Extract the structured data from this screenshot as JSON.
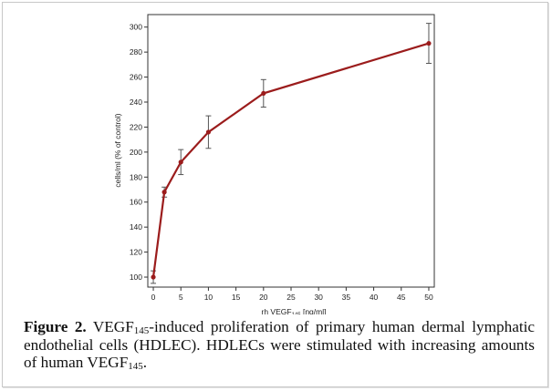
{
  "chart_data": {
    "type": "line",
    "title": "",
    "ylabel": "cells/ml (% of control)",
    "xlabel_main": "rh VEGF",
    "xlabel_sub": "145",
    "xlabel_tail": " [ng/ml]",
    "xlim": [
      -1,
      51
    ],
    "ylim": [
      92,
      310
    ],
    "x_ticks": [
      0,
      5,
      10,
      15,
      20,
      25,
      30,
      35,
      40,
      45,
      50
    ],
    "y_ticks": [
      100,
      120,
      140,
      160,
      180,
      200,
      220,
      240,
      260,
      280,
      300
    ],
    "grid": false,
    "series": [
      {
        "x": [
          0,
          2,
          5,
          10,
          20,
          50
        ],
        "y": [
          100,
          168,
          192,
          216,
          247,
          287
        ],
        "err": [
          5,
          4,
          10,
          13,
          11,
          16
        ],
        "color": "#9b1c1c"
      }
    ]
  },
  "caption": {
    "label": "Figure 2.",
    "t1": " VEGF",
    "sub1": "145",
    "t2": "-induced proliferation of primary human dermal lymphatic endothelial cells (HDLEC). HDLECs were stimulated with increasing amounts of human VEGF",
    "sub2": "145",
    "t3": "."
  }
}
